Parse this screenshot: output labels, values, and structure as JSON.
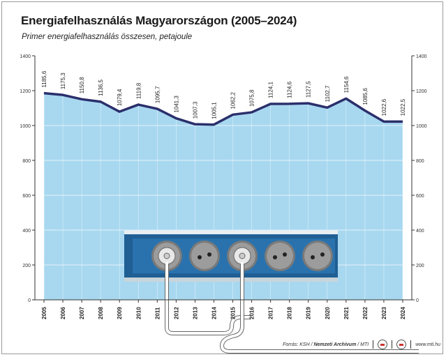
{
  "title": "Energiafelhasználás Magyarországon (2005–2024)",
  "subtitle": "Primer energiafelhasználás összesen, petajoule",
  "footer": {
    "source_prefix": "Forrás: KSH /",
    "archive": "Nemzeti Archívum",
    "agency": "/ MTI",
    "url": "www.mti.hu"
  },
  "colors": {
    "area_fill": "#a8d8f0",
    "line": "#2b2f6b",
    "grid": "#ffffff",
    "socket_strip": "#1f5f94",
    "socket": "#9c9c9c"
  },
  "chart_data": {
    "type": "area",
    "title": "Energiafelhasználás Magyarországon (2005–2024)",
    "subtitle": "Primer energiafelhasználás összesen, petajoule",
    "x": [
      "2005",
      "2006",
      "2007",
      "2008",
      "2009",
      "2010",
      "2011",
      "2012",
      "2013",
      "2014",
      "2015",
      "2016",
      "2017",
      "2018",
      "2019",
      "2020",
      "2021",
      "2022",
      "2023",
      "2024"
    ],
    "values": [
      1185.6,
      1175.3,
      1150.8,
      1136.5,
      1079.4,
      1119.8,
      1095.7,
      1041.3,
      1007.3,
      1005.1,
      1062.2,
      1075.8,
      1124.1,
      1124.6,
      1127.5,
      1102.7,
      1154.6,
      1085.6,
      1022.6,
      1022.5
    ],
    "data_labels": [
      "1185,6",
      "1175,3",
      "1150,8",
      "1136,5",
      "1079,4",
      "1119,8",
      "1095,7",
      "1041,3",
      "1007,3",
      "1005,1",
      "1062,2",
      "1075,8",
      "1124,1",
      "1124,6",
      "1127,5",
      "1102,7",
      "1154,6",
      "1085,6",
      "1022,6",
      "1022,5"
    ],
    "y_ticks": [
      "0",
      "200",
      "400",
      "600",
      "800",
      "1000",
      "1200",
      "1400"
    ],
    "ylim": [
      0,
      1400
    ],
    "grid": true,
    "axis_labels_both_sides": true
  }
}
